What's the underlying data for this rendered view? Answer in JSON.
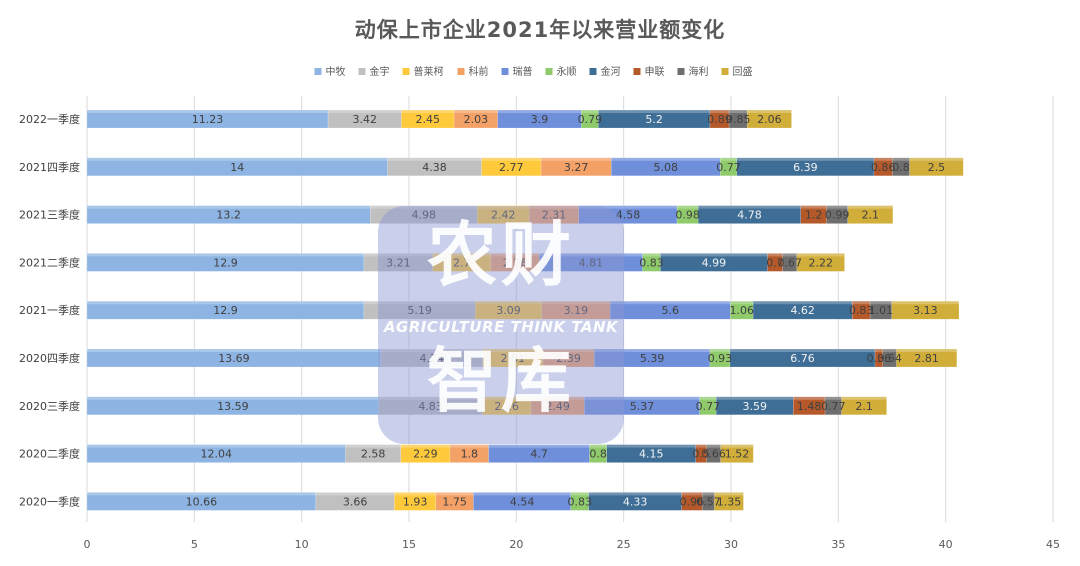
{
  "chart_data": {
    "type": "bar",
    "orientation": "horizontal",
    "stacked": true,
    "title": "动保上市企业2021年以来营业额变化",
    "xlabel": "",
    "ylabel": "",
    "xlim": [
      0,
      45
    ],
    "xticks": [
      0,
      5,
      10,
      15,
      20,
      25,
      30,
      35,
      40,
      45
    ],
    "grid": "vertical",
    "legend_position": "top",
    "categories": [
      "2022一季度",
      "2021四季度",
      "2021三季度",
      "2021二季度",
      "2021一季度",
      "2020四季度",
      "2020三季度",
      "2020二季度",
      "2020一季度"
    ],
    "series": [
      {
        "name": "中牧",
        "color": "#8DB4E2",
        "values": [
          11.23,
          14,
          13.2,
          12.9,
          12.9,
          13.69,
          13.59,
          12.04,
          10.66
        ],
        "labels": [
          "11.23",
          "14",
          "13.2",
          "12.9",
          "12.9",
          "13.69",
          "13.59",
          "12.04",
          "10.66"
        ]
      },
      {
        "name": "金宇",
        "color": "#C0C0C0",
        "values": [
          3.42,
          4.38,
          4.98,
          3.21,
          5.19,
          4.74,
          4.83,
          2.58,
          3.66
        ],
        "labels": [
          "3.42",
          "4.38",
          "4.98",
          "3.21",
          "5.19",
          "4.74",
          "4.83",
          "2.58",
          "3.66"
        ]
      },
      {
        "name": "普莱柯",
        "color": "#FFC93C",
        "values": [
          2.45,
          2.77,
          2.42,
          2.7,
          3.09,
          2.81,
          2.26,
          2.29,
          1.93
        ],
        "labels": [
          "2.45",
          "2.77",
          "2.42",
          "2.7",
          "3.09",
          "2.81",
          "2.26",
          "2.29",
          "1.93"
        ]
      },
      {
        "name": "科前",
        "color": "#F4A167",
        "values": [
          2.03,
          3.27,
          2.31,
          2.26,
          3.19,
          2.39,
          2.49,
          1.8,
          1.75
        ],
        "labels": [
          "2.03",
          "3.27",
          "2.31",
          "2.26",
          "3.19",
          "2.39",
          "2.49",
          "1.8",
          "1.75"
        ]
      },
      {
        "name": "瑞普",
        "color": "#6F8FDB",
        "values": [
          3.9,
          5.08,
          4.58,
          4.81,
          5.6,
          5.39,
          5.37,
          4.7,
          4.54
        ],
        "labels": [
          "3.9",
          "5.08",
          "4.58",
          "4.81",
          "5.6",
          "5.39",
          "5.37",
          "4.7",
          "4.54"
        ]
      },
      {
        "name": "永顺",
        "color": "#8FCB6B",
        "values": [
          0.79,
          0.77,
          0.98,
          0.83,
          1.06,
          0.93,
          0.77,
          0.8,
          0.83
        ],
        "labels": [
          "0.79",
          "0.77",
          "0.98",
          "0.83",
          "1.06",
          "0.93",
          "0.77",
          "0.8",
          "0.83"
        ]
      },
      {
        "name": "金河",
        "color": "#3E6E96",
        "values": [
          5.2,
          6.39,
          4.78,
          4.99,
          4.62,
          6.76,
          3.59,
          4.15,
          4.33
        ],
        "labels": [
          "5.2",
          "6.39",
          "4.78",
          "4.99",
          "4.62",
          "6.76",
          "3.59",
          "4.15",
          "4.33"
        ]
      },
      {
        "name": "申联",
        "color": "#B5582A",
        "values": [
          0.89,
          0.86,
          1.2,
          0.7,
          0.83,
          0.36,
          1.48,
          0.5,
          0.96
        ],
        "labels": [
          "0.89",
          "0.86",
          "1.2",
          "0.7",
          "0.83",
          "0.36",
          "1.48",
          "0.5",
          "0.96"
        ]
      },
      {
        "name": "海利",
        "color": "#6E6E6E",
        "values": [
          0.85,
          0.8,
          0.99,
          0.67,
          1.01,
          0.64,
          0.77,
          0.66,
          0.57
        ],
        "labels": [
          "0.85",
          "0.8",
          "0.99",
          "0.67",
          "1.01",
          "0.64",
          "0.77",
          "0.66",
          "0.57"
        ]
      },
      {
        "name": "回盛",
        "color": "#D1AE3A",
        "values": [
          2.06,
          2.5,
          2.1,
          2.22,
          3.13,
          2.81,
          2.1,
          1.52,
          1.35
        ],
        "labels": [
          "2.06",
          "2.5",
          "2.1",
          "2.22",
          "3.13",
          "2.81",
          "2.1",
          "1.52",
          "1.35"
        ]
      }
    ]
  },
  "watermark": {
    "line1": "农财",
    "line2": "AGRICULTURE THINK TANK",
    "line3": "智库"
  }
}
